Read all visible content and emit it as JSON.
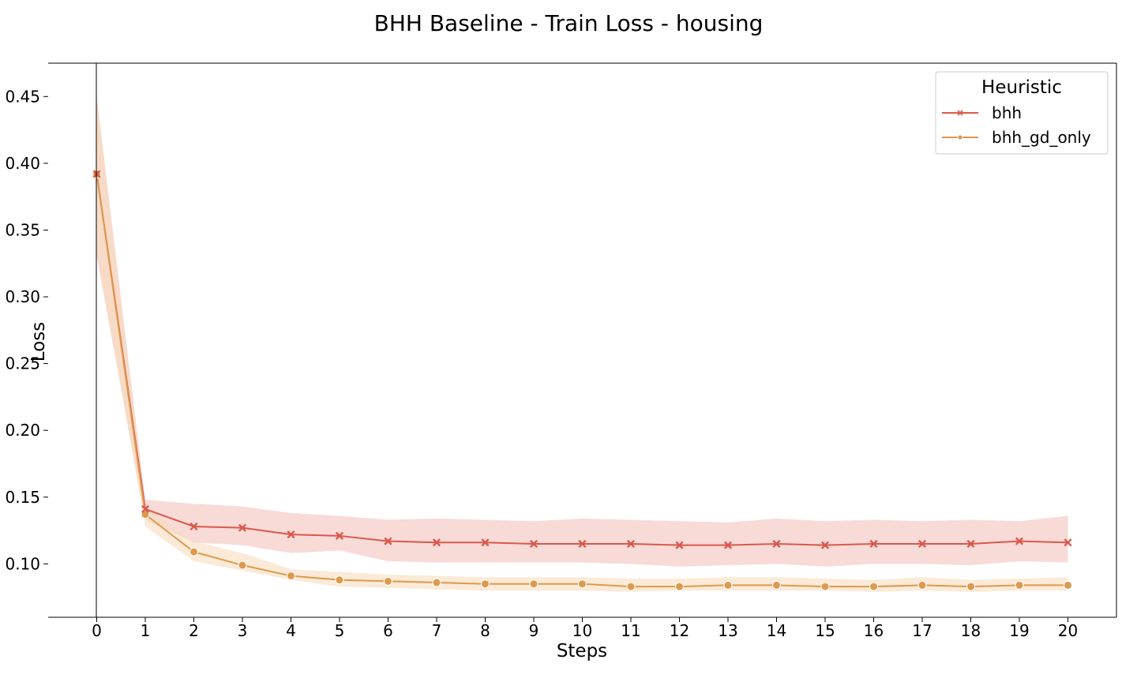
{
  "chart_data": {
    "type": "line",
    "title": "BHH Baseline - Train Loss - housing",
    "xlabel": "Steps",
    "ylabel": "Loss",
    "x": [
      0,
      1,
      2,
      3,
      4,
      5,
      6,
      7,
      8,
      9,
      10,
      11,
      12,
      13,
      14,
      15,
      16,
      17,
      18,
      19,
      20
    ],
    "xlim": [
      -1,
      21
    ],
    "ylim": [
      0.06,
      0.475
    ],
    "yticks": [
      0.1,
      0.15,
      0.2,
      0.25,
      0.3,
      0.35,
      0.4,
      0.45
    ],
    "ytick_labels": [
      "0.10",
      "0.15",
      "0.20",
      "0.25",
      "0.30",
      "0.35",
      "0.40",
      "0.45"
    ],
    "xtick_labels": [
      "0",
      "1",
      "2",
      "3",
      "4",
      "5",
      "6",
      "7",
      "8",
      "9",
      "10",
      "11",
      "12",
      "13",
      "14",
      "15",
      "16",
      "17",
      "18",
      "19",
      "20"
    ],
    "grid": false,
    "legend": {
      "title": "Heuristic",
      "placement": "top-right"
    },
    "series": [
      {
        "name": "bhh",
        "color": "#d9594c",
        "band_color": "#f4c2bd",
        "marker": "x",
        "values": [
          0.392,
          0.141,
          0.128,
          0.127,
          0.122,
          0.121,
          0.117,
          0.116,
          0.116,
          0.115,
          0.115,
          0.115,
          0.114,
          0.114,
          0.115,
          0.114,
          0.115,
          0.115,
          0.115,
          0.117,
          0.116
        ],
        "lower": [
          0.33,
          0.133,
          0.116,
          0.114,
          0.108,
          0.11,
          0.102,
          0.101,
          0.101,
          0.101,
          0.101,
          0.1,
          0.098,
          0.099,
          0.1,
          0.098,
          0.1,
          0.1,
          0.099,
          0.102,
          0.101
        ],
        "upper": [
          0.45,
          0.148,
          0.145,
          0.143,
          0.138,
          0.136,
          0.133,
          0.134,
          0.133,
          0.132,
          0.134,
          0.133,
          0.132,
          0.131,
          0.134,
          0.132,
          0.133,
          0.132,
          0.133,
          0.132,
          0.136
        ]
      },
      {
        "name": "bhh_gd_only",
        "color": "#dd9a4e",
        "band_color": "#f6dcbd",
        "marker": "o",
        "values": [
          0.392,
          0.137,
          0.109,
          0.099,
          0.091,
          0.088,
          0.087,
          0.086,
          0.085,
          0.085,
          0.085,
          0.083,
          0.083,
          0.084,
          0.084,
          0.083,
          0.083,
          0.084,
          0.083,
          0.084,
          0.084
        ],
        "lower": [
          0.335,
          0.128,
          0.102,
          0.095,
          0.088,
          0.083,
          0.082,
          0.081,
          0.08,
          0.08,
          0.08,
          0.079,
          0.08,
          0.08,
          0.08,
          0.08,
          0.079,
          0.08,
          0.079,
          0.08,
          0.08
        ],
        "upper": [
          0.448,
          0.142,
          0.117,
          0.108,
          0.096,
          0.094,
          0.092,
          0.091,
          0.09,
          0.09,
          0.09,
          0.089,
          0.089,
          0.09,
          0.09,
          0.089,
          0.088,
          0.09,
          0.088,
          0.089,
          0.09
        ]
      }
    ]
  }
}
